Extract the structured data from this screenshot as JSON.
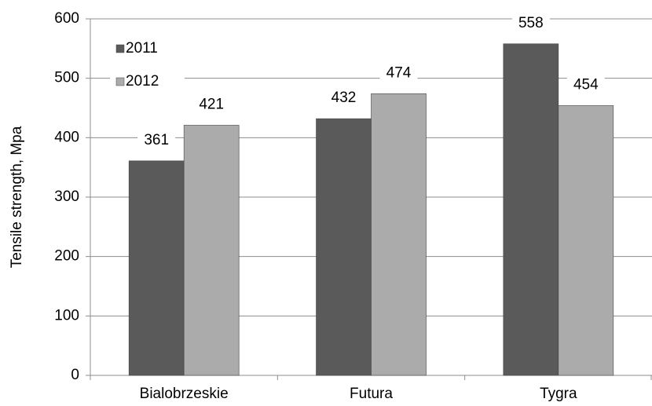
{
  "chart_data": {
    "type": "bar",
    "y_label": "Tensile strength, Mpa",
    "categories": [
      "Bialobrzeskie",
      "Futura",
      "Tygra"
    ],
    "series": [
      {
        "name": "2011",
        "color": "#5a5a5a",
        "values": [
          361,
          432,
          558
        ]
      },
      {
        "name": "2012",
        "color": "#ababab",
        "values": [
          421,
          474,
          454
        ]
      }
    ],
    "ylim": [
      0,
      600
    ],
    "yticks": [
      0,
      100,
      200,
      300,
      400,
      500,
      600
    ],
    "grid": true,
    "legend": "upper-left"
  }
}
